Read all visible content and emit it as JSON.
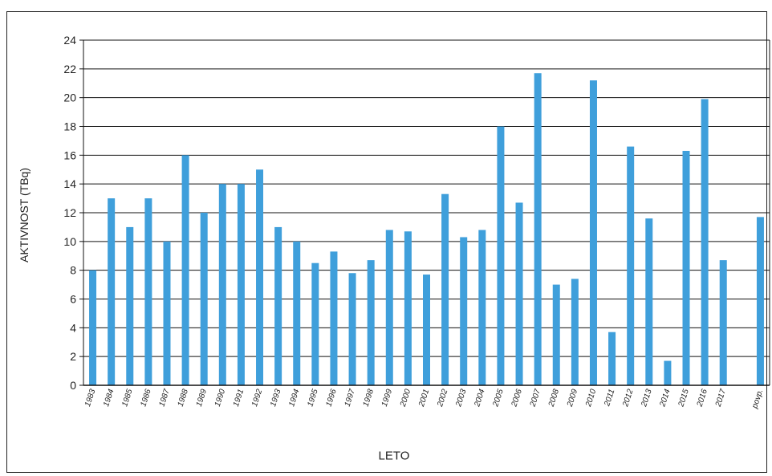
{
  "chart_data": {
    "type": "bar",
    "xlabel": "LETO",
    "ylabel": "AKTIVNOST  (TBq)",
    "ylim": [
      0,
      24
    ],
    "yticks": [
      "0",
      "2",
      "4",
      "6",
      "8",
      "10",
      "12",
      "14",
      "16",
      "18",
      "20",
      "22",
      "24"
    ],
    "grid": "horizontal",
    "bar_color": "#3f9fdb",
    "categories": [
      "1983",
      "1984",
      "1985",
      "1986",
      "1987",
      "1988",
      "1989",
      "1990",
      "1991",
      "1992",
      "1993",
      "1994",
      "1995",
      "1996",
      "1997",
      "1998",
      "1999",
      "2000",
      "2001",
      "2002",
      "2003",
      "2004",
      "2005",
      "2006",
      "2007",
      "2008",
      "2009",
      "2010",
      "2011",
      "2012",
      "2013",
      "2014",
      "2015",
      "2016",
      "2017",
      "",
      "povp."
    ],
    "values": [
      8.0,
      13.0,
      11.0,
      13.0,
      10.0,
      16.0,
      12.0,
      14.0,
      14.0,
      15.0,
      11.0,
      10.0,
      8.5,
      9.3,
      7.8,
      8.7,
      10.8,
      10.7,
      7.7,
      13.3,
      10.3,
      10.8,
      18.0,
      12.7,
      21.7,
      7.0,
      7.4,
      21.2,
      3.7,
      16.6,
      11.6,
      1.7,
      16.3,
      19.9,
      8.7,
      null,
      11.7
    ]
  }
}
